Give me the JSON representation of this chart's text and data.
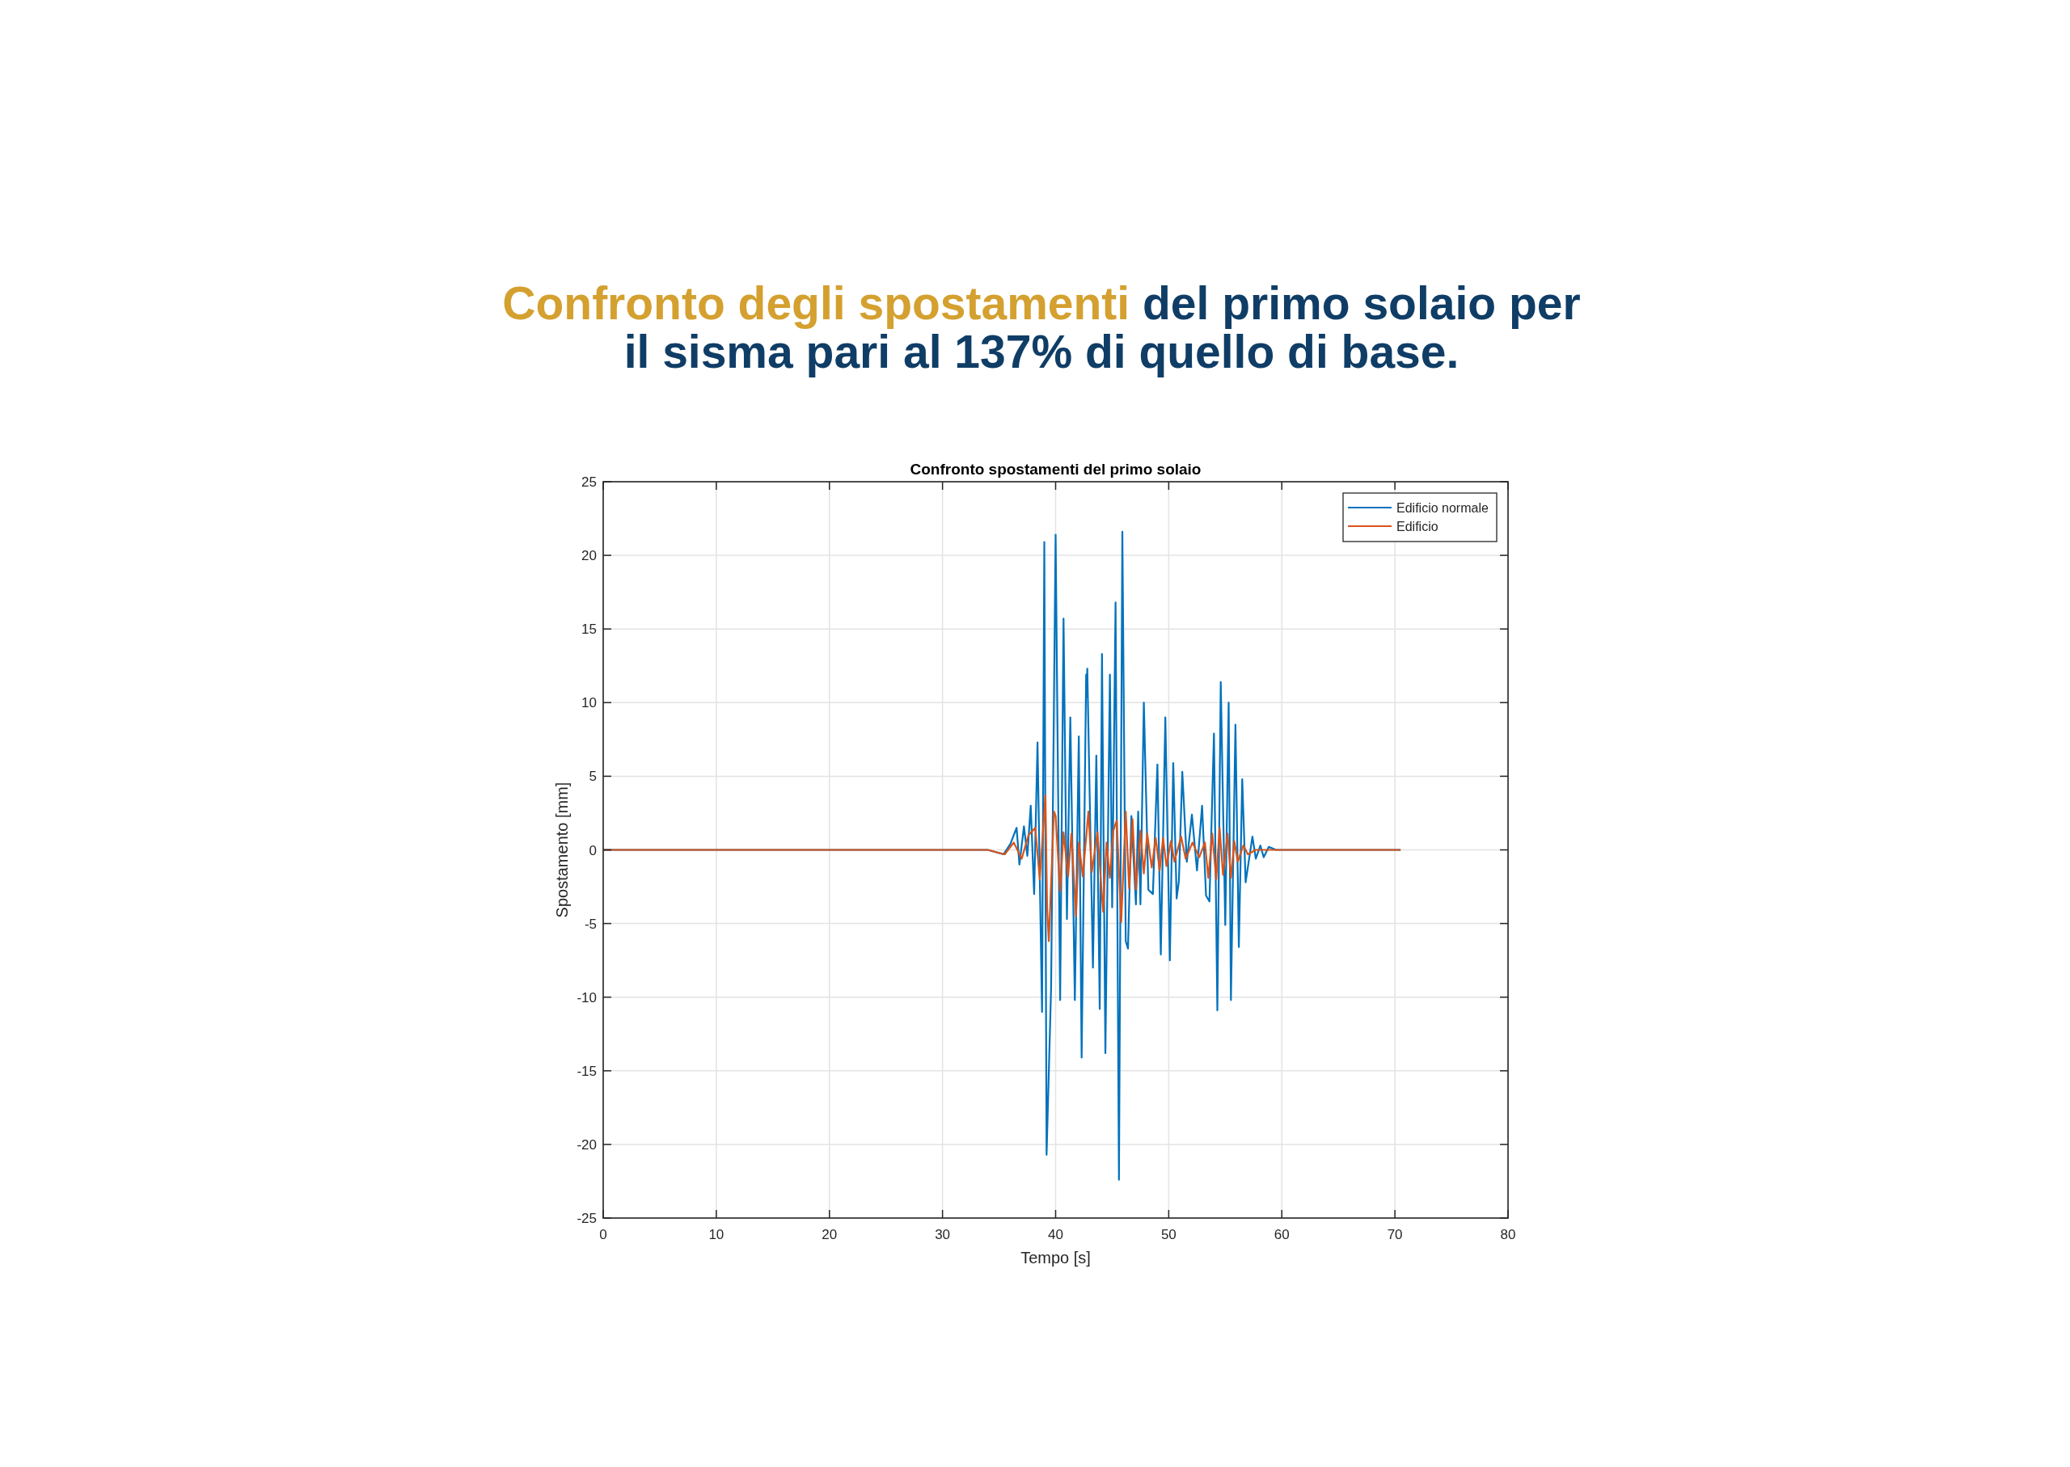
{
  "chart_data": {
    "type": "line",
    "title": "Confronto degli spostamenti del primo solaio per il sisma pari al 137% di quello di base.",
    "subtitle": "Confronto spostamenti del primo solaio",
    "xlabel": "Tempo [s]",
    "ylabel": "Spostamento [mm]",
    "xlim": [
      0,
      80
    ],
    "ylim": [
      -25,
      25
    ],
    "xticks": [
      0,
      10,
      20,
      30,
      40,
      50,
      60,
      70,
      80
    ],
    "yticks": [
      -25,
      -20,
      -15,
      -10,
      -5,
      0,
      5,
      10,
      15,
      20,
      25
    ],
    "grid": true,
    "legend": "top right",
    "line_style": "solid",
    "series": [
      {
        "name": "Edificio normale",
        "color": "#0072bd",
        "x": [
          0,
          34,
          35.4,
          36,
          36.55,
          36.8,
          37.2,
          37.5,
          37.8,
          38.1,
          38.4,
          38.8,
          39.0,
          39.2,
          39.6,
          40.0,
          40.4,
          40.7,
          41.0,
          41.3,
          41.7,
          42.05,
          42.3,
          42.7,
          42.75,
          42.8,
          43.3,
          43.6,
          43.9,
          44.1,
          44.4,
          44.8,
          45.0,
          45.3,
          45.6,
          45.9,
          46.2,
          46.4,
          46.7,
          47.1,
          47.3,
          47.5,
          47.8,
          48.2,
          48.6,
          49.0,
          49.3,
          49.7,
          50.1,
          50.4,
          50.7,
          50.9,
          51.2,
          51.6,
          52.05,
          52.5,
          52.95,
          53.3,
          53.6,
          54.0,
          54.3,
          54.6,
          55.0,
          55.3,
          55.5,
          55.9,
          56.2,
          56.5,
          56.8,
          57.4,
          57.7,
          58.1,
          58.4,
          58.85,
          59.5,
          70.5
        ],
        "values": [
          0,
          0,
          -0.3,
          0.4,
          1.5,
          -1,
          1.6,
          -0.4,
          3,
          -3,
          7.3,
          -11,
          20.9,
          -20.7,
          -9.4,
          21.4,
          -10.2,
          15.7,
          -4.7,
          9,
          -10.2,
          7.7,
          -14.1,
          11.9,
          10.4,
          12.3,
          -8,
          6.4,
          -10.8,
          13.3,
          -13.8,
          11.9,
          -3.9,
          16.8,
          -22.4,
          21.6,
          -6.2,
          -6.7,
          2.3,
          -3.7,
          2.6,
          -3.7,
          10,
          -2.7,
          -3,
          5.8,
          -7.1,
          9,
          -7.5,
          5.9,
          -3.3,
          -2.1,
          5.3,
          -0.8,
          2.4,
          -1.4,
          3,
          -3.1,
          -3.5,
          7.9,
          -10.9,
          11.4,
          -5.1,
          10,
          -10.2,
          8.5,
          -6.6,
          4.8,
          -2.2,
          0.9,
          -0.6,
          0.3,
          -0.5,
          0.2,
          0,
          0
        ]
      },
      {
        "name": "Edificio",
        "color": "#d95319",
        "x": [
          0,
          34,
          35.5,
          36.3,
          37,
          37.6,
          38.2,
          38.6,
          39.1,
          39.25,
          39.4,
          39.85,
          40.0,
          40.4,
          40.7,
          41.1,
          41.4,
          41.8,
          42.05,
          42.4,
          42.9,
          43.2,
          43.7,
          44.2,
          44.5,
          44.8,
          45.1,
          45.4,
          45.8,
          46.2,
          46.5,
          46.8,
          47.1,
          47.5,
          47.8,
          48.1,
          48.5,
          48.85,
          49.2,
          49.5,
          49.8,
          50.2,
          50.5,
          51.1,
          51.5,
          52.1,
          52.7,
          53.2,
          53.5,
          53.85,
          54.2,
          54.5,
          54.8,
          55.2,
          55.5,
          55.8,
          56.1,
          56.6,
          57.0,
          57.7,
          70.5
        ],
        "values": [
          0,
          0,
          -0.3,
          0.5,
          -0.6,
          1,
          1.5,
          -2,
          3.7,
          -4,
          -6.2,
          2.6,
          2.3,
          -2.8,
          1.2,
          -1.8,
          1.1,
          -4.5,
          0.5,
          -1.8,
          2.6,
          -1.5,
          1.2,
          -4.2,
          0.5,
          -1.9,
          1.3,
          2,
          -4.9,
          2.6,
          -2.6,
          2.1,
          -2.7,
          1.3,
          -1.6,
          1.1,
          -1.2,
          0.8,
          -1.4,
          0.8,
          -1.1,
          0.6,
          -0.8,
          0.9,
          -0.6,
          0.5,
          -0.5,
          0.5,
          -1.9,
          1.1,
          -2,
          1.5,
          -1.7,
          1.1,
          -1.9,
          0.6,
          -0.8,
          0.3,
          -0.3,
          0,
          0
        ]
      }
    ]
  }
}
